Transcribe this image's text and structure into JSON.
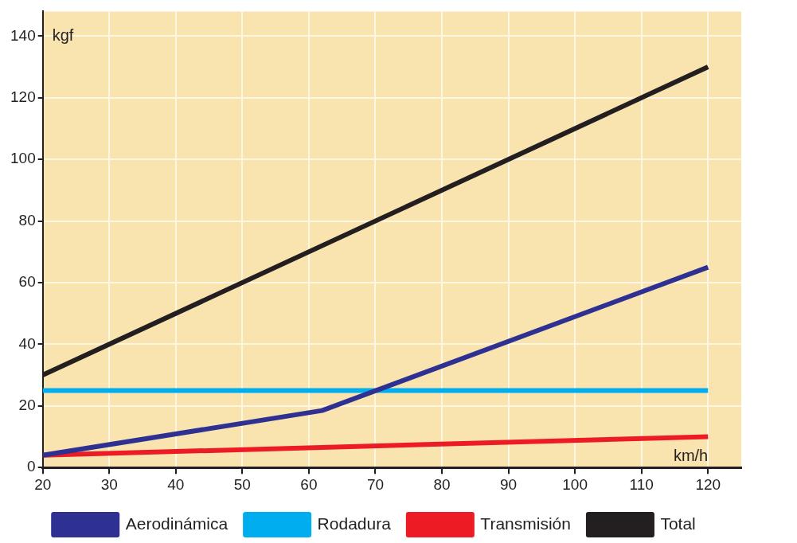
{
  "chart_data": {
    "type": "line",
    "xlabel": "km/h",
    "ylabel": "kgf",
    "xlim": [
      20,
      125
    ],
    "xticks": [
      20,
      30,
      40,
      50,
      60,
      70,
      80,
      90,
      100,
      110,
      120
    ],
    "ylim": [
      0,
      148
    ],
    "yticks": [
      0,
      20,
      40,
      60,
      80,
      100,
      120,
      140
    ],
    "grid": true,
    "legend": "bottom",
    "marker": "none",
    "line_style": "solid",
    "series": [
      {
        "name": "Aerodinámica",
        "color": "#2e3192",
        "x": [
          20,
          62,
          120
        ],
        "values": [
          4,
          18.5,
          65
        ]
      },
      {
        "name": "Rodadura",
        "color": "#00aeef",
        "x": [
          20,
          120
        ],
        "values": [
          25,
          25
        ]
      },
      {
        "name": "Transmisión",
        "color": "#ed1c24",
        "x": [
          20,
          120
        ],
        "values": [
          4,
          10
        ]
      },
      {
        "name": "Total",
        "color": "#231f20",
        "x": [
          20,
          120
        ],
        "values": [
          30,
          130
        ]
      }
    ]
  }
}
